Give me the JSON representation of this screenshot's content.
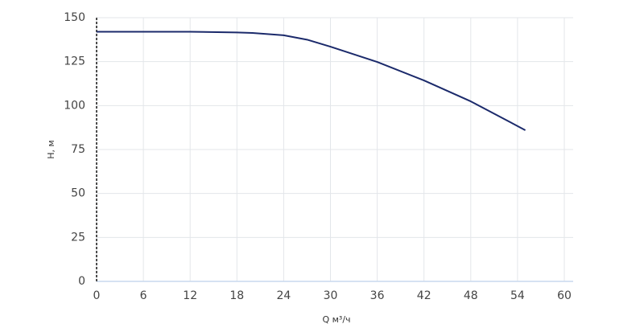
{
  "chart_data": {
    "type": "line",
    "x_label": "Q м³/ч",
    "y_label": "H, м",
    "x": [
      0,
      6,
      12,
      18,
      20,
      24,
      27,
      30,
      36,
      42,
      48,
      55
    ],
    "series": [
      {
        "name": "H",
        "color": "#1b2a6b",
        "values": [
          142,
          142,
          142,
          141.6,
          141.3,
          140,
          137.5,
          133.5,
          124.8,
          114.3,
          102.4,
          86
        ]
      }
    ],
    "xlim": [
      0,
      60
    ],
    "xticks": [
      0,
      6,
      12,
      18,
      24,
      30,
      36,
      42,
      48,
      54,
      60
    ],
    "ylim": [
      0,
      150
    ],
    "yticks": [
      0,
      25,
      50,
      75,
      100,
      125,
      150
    ],
    "grid": true
  }
}
